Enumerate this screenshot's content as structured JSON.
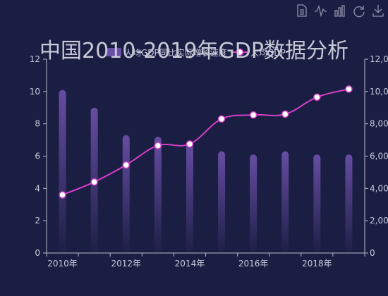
{
  "toolbox": {
    "color": "#8e90a8",
    "items": [
      {
        "name": "data-view-icon"
      },
      {
        "name": "line-chart-icon"
      },
      {
        "name": "bar-chart-icon"
      },
      {
        "name": "restore-icon"
      },
      {
        "name": "download-icon"
      }
    ]
  },
  "chart_data": {
    "type": "bar",
    "title": "中国2010-2019年GDP数据分析",
    "x": [
      "2010年",
      "2011年",
      "2012年",
      "2013年",
      "2014年",
      "2015年",
      "2016年",
      "2017年",
      "2018年",
      "2019年"
    ],
    "x_tick_labels": [
      "2010年",
      "",
      "2012年",
      "",
      "2014年",
      "",
      "2016年",
      "",
      "2018年",
      ""
    ],
    "legend_position": "top-center",
    "grid": false,
    "y_left": {
      "min": 0,
      "max": 12,
      "ticks": [
        "0",
        "2",
        "4",
        "6",
        "8",
        "10",
        "12"
      ]
    },
    "y_right": {
      "min": 0,
      "max": 12000,
      "ticks": [
        "0",
        "2,000",
        "4,000",
        "6,000",
        "8,000",
        "10,000",
        "12,000"
      ]
    },
    "series": [
      {
        "name": "人均GDP同比实际增长速度",
        "type": "bar",
        "axis": "left",
        "color": "#6a4fa8",
        "values": [
          10.1,
          9.0,
          7.3,
          7.2,
          6.8,
          6.3,
          6.1,
          6.3,
          6.1,
          6.1
        ]
      },
      {
        "name": "人均GDP",
        "type": "line",
        "axis": "right",
        "color": "#d63fc8",
        "values": [
          3600,
          4400,
          5450,
          6650,
          6750,
          8300,
          8550,
          8600,
          9650,
          10150
        ]
      }
    ]
  }
}
